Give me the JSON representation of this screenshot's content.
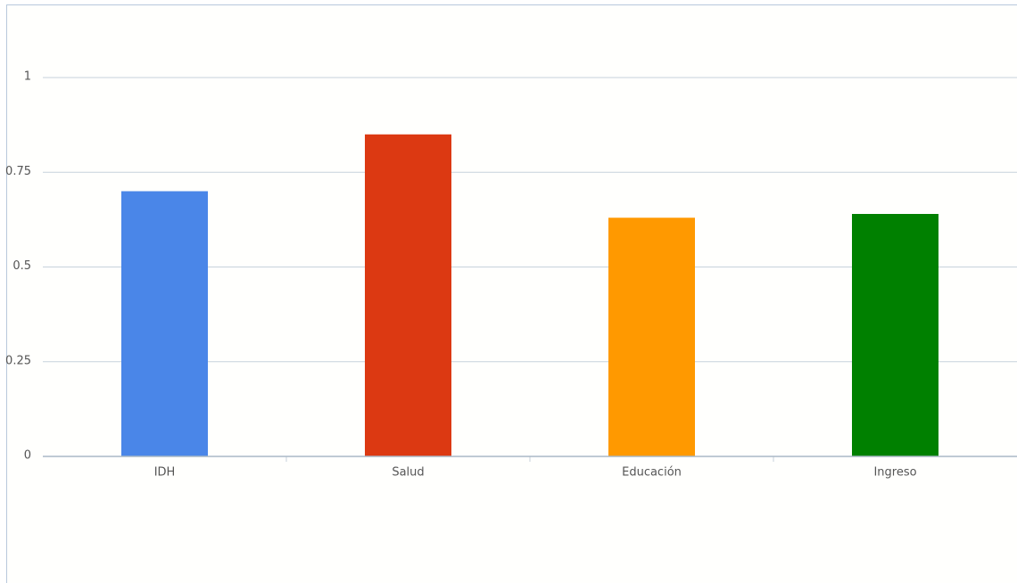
{
  "chart_data": {
    "type": "bar",
    "categories": [
      "IDH",
      "Salud",
      "Educación",
      "Ingreso"
    ],
    "values": [
      0.7,
      0.85,
      0.63,
      0.64
    ],
    "colors": [
      "#4a86e8",
      "#dc3912",
      "#ff9900",
      "#008000"
    ],
    "ylim": [
      0,
      1
    ],
    "yticks": [
      0,
      0.25,
      0.5,
      0.75,
      1
    ],
    "grid": true
  }
}
